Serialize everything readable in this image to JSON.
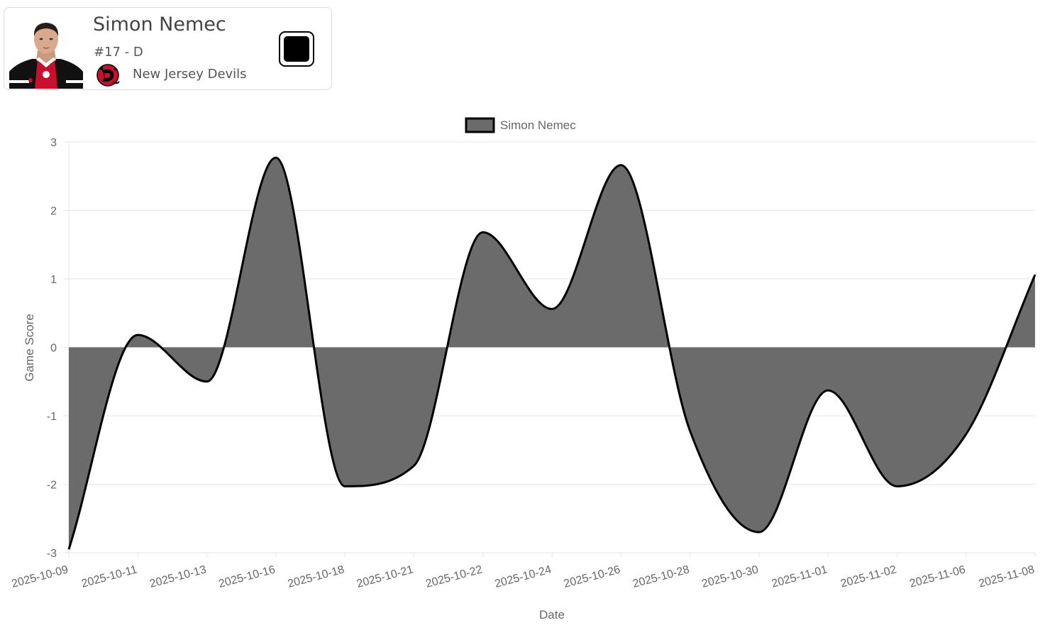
{
  "player": {
    "name": "Simon Nemec",
    "number_position": "#17 - D",
    "team": "New Jersey Devils",
    "color": "#000000"
  },
  "chart_data": {
    "type": "area",
    "legend_position": "top",
    "xlabel": "Date",
    "ylabel": "Game Score",
    "ylim": [
      -3,
      3
    ],
    "yticks": [
      3,
      2,
      1,
      0,
      -1,
      -2,
      -3
    ],
    "grid": true,
    "categories": [
      "2025-10-09",
      "2025-10-11",
      "2025-10-13",
      "2025-10-16",
      "2025-10-18",
      "2025-10-21",
      "2025-10-22",
      "2025-10-24",
      "2025-10-26",
      "2025-10-28",
      "2025-10-30",
      "2025-11-01",
      "2025-11-02",
      "2025-11-06",
      "2025-11-08"
    ],
    "series": [
      {
        "name": "Simon Nemec",
        "values": [
          -2.95,
          0.18,
          -0.5,
          2.77,
          -2.03,
          -1.73,
          1.68,
          0.56,
          2.66,
          -1.22,
          -2.7,
          -0.63,
          -2.03,
          -1.27,
          1.06
        ],
        "fill": "#6b6b6b",
        "stroke": "#000000"
      }
    ]
  }
}
